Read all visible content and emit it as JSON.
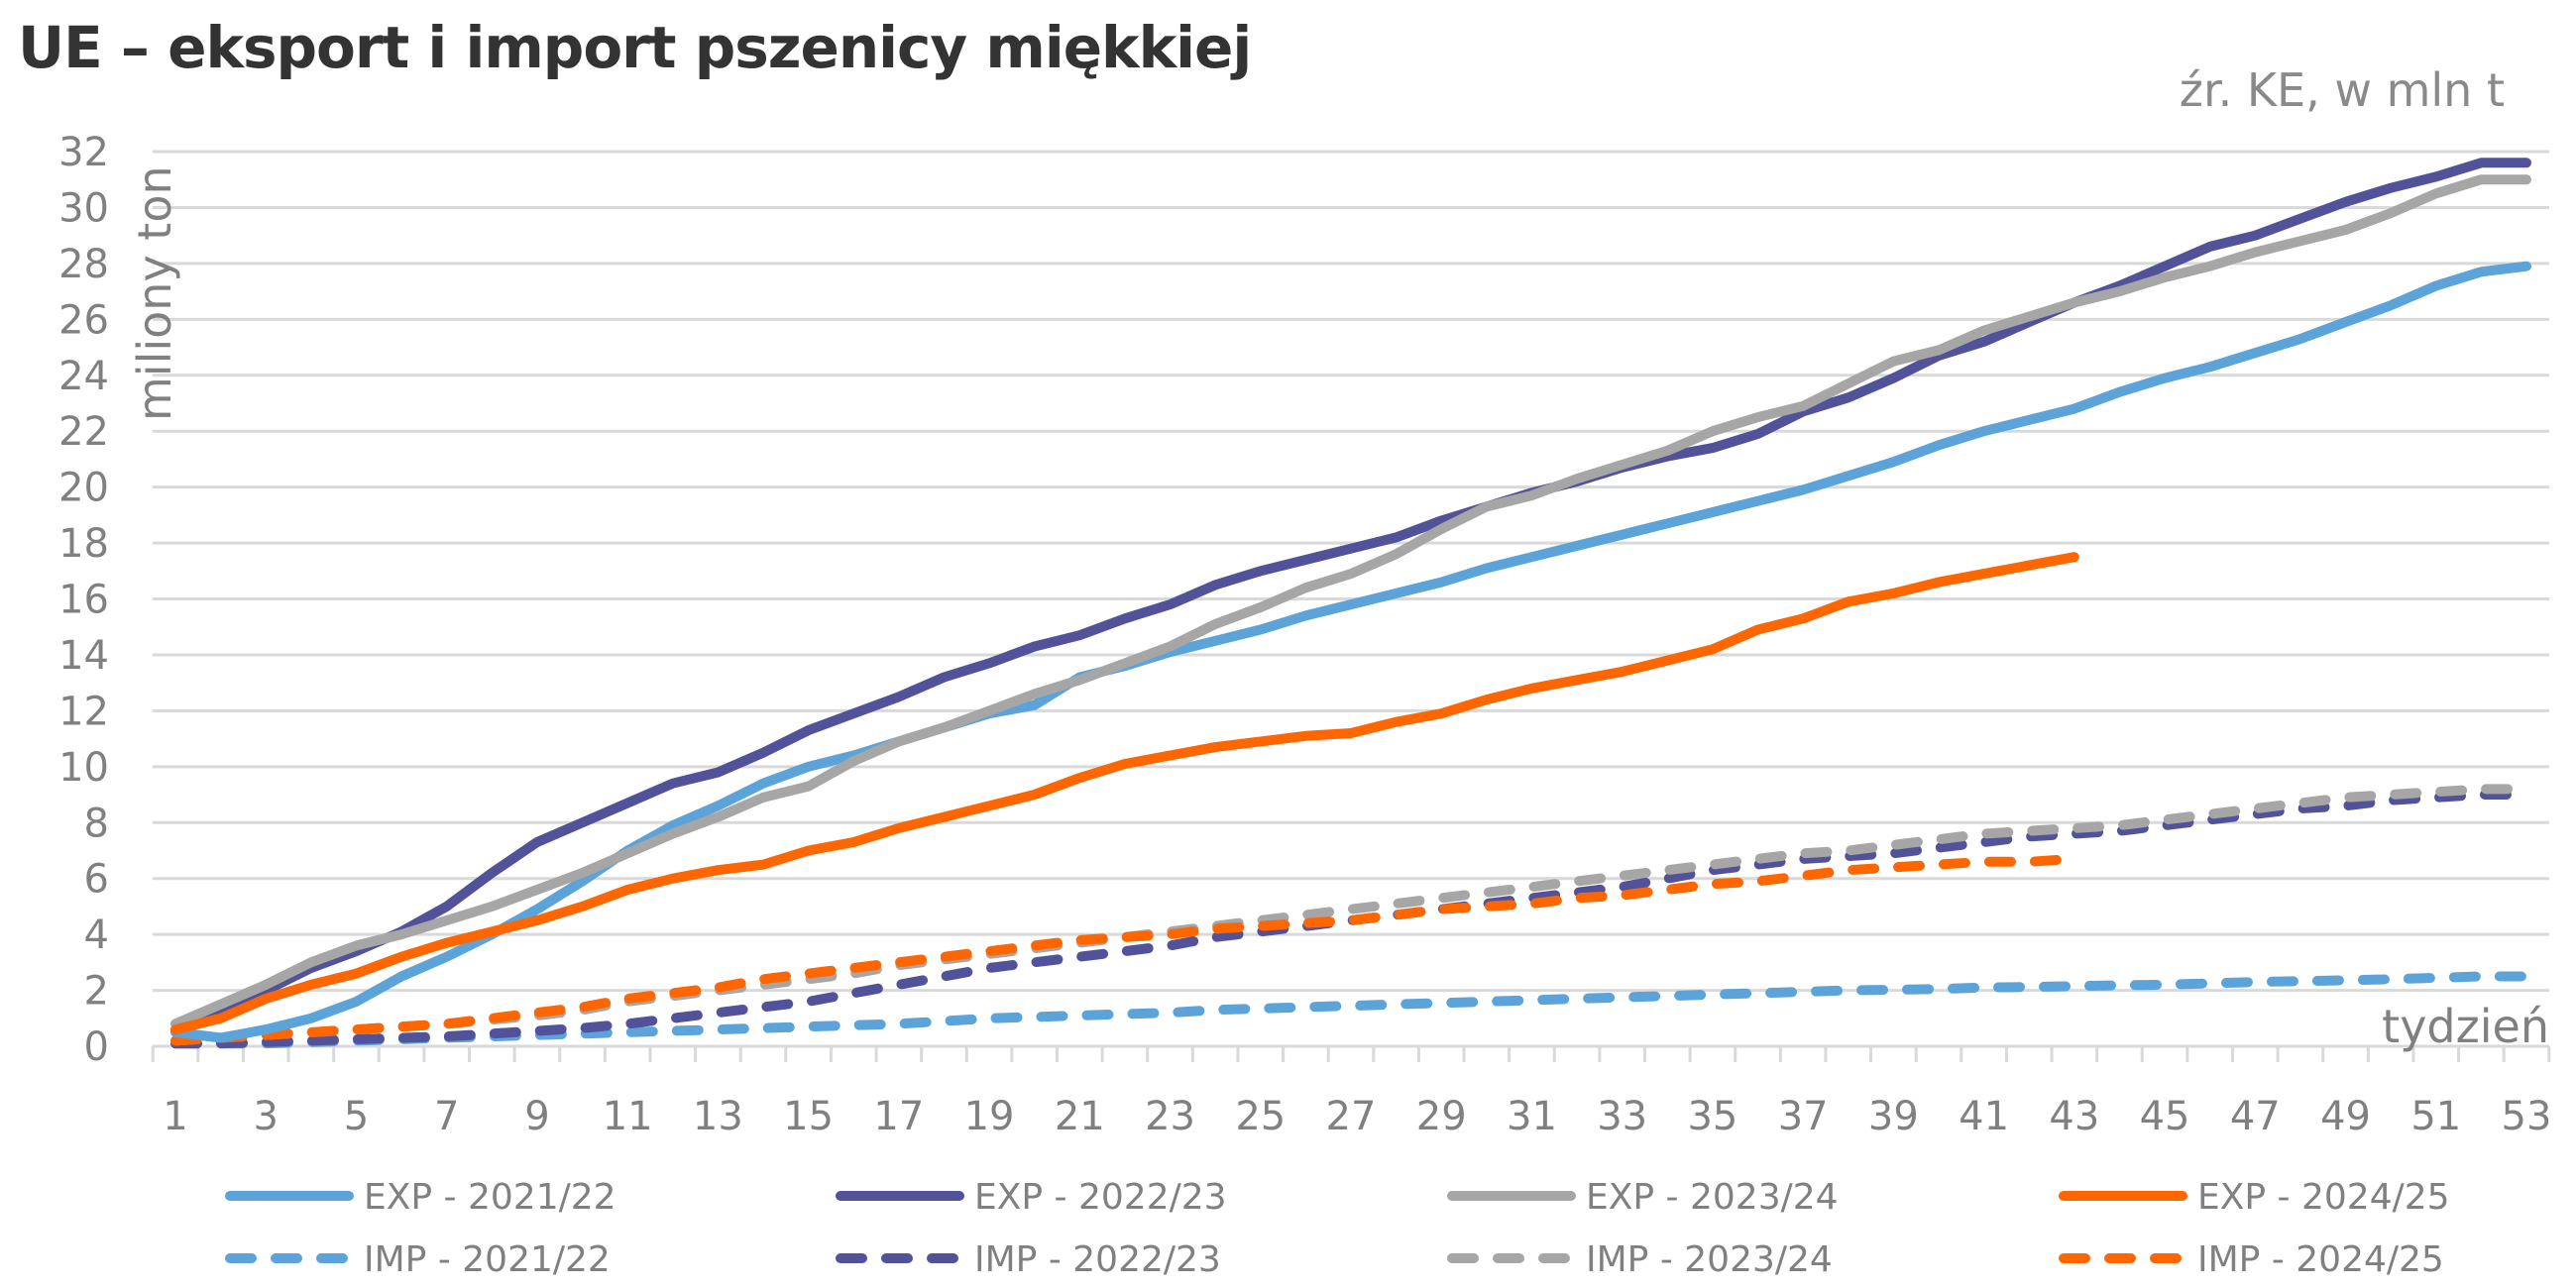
{
  "title": "UE – eksport i import pszenicy miękkiej",
  "source_note": "źr. KE, w mln t",
  "chart_data": {
    "type": "line",
    "title": "UE – eksport i import pszenicy miękkiej",
    "subtitle": "źr. KE, w mln t",
    "xlabel": "tydzień",
    "ylabel": "miliony ton",
    "ylim": [
      0,
      32
    ],
    "xlim": [
      1,
      53
    ],
    "yticks": [
      "0",
      "2",
      "4",
      "6",
      "8",
      "10",
      "12",
      "14",
      "16",
      "18",
      "20",
      "22",
      "24",
      "26",
      "28",
      "30",
      "32"
    ],
    "xticks": [
      "1",
      "3",
      "5",
      "7",
      "9",
      "11",
      "13",
      "15",
      "17",
      "19",
      "21",
      "23",
      "25",
      "27",
      "29",
      "31",
      "33",
      "35",
      "37",
      "39",
      "41",
      "43",
      "45",
      "47",
      "49",
      "51",
      "53"
    ],
    "grid": true,
    "legend_position": "bottom",
    "series": [
      {
        "name": "EXP - 2021/22",
        "color": "#5ba3d9",
        "dashed": false,
        "values": [
          0.5,
          0.3,
          0.6,
          1.0,
          1.6,
          2.5,
          3.2,
          4.0,
          4.9,
          5.9,
          7.0,
          7.9,
          8.6,
          9.4,
          10.0,
          10.4,
          10.9,
          11.4,
          11.9,
          12.2,
          13.2,
          13.6,
          14.1,
          14.5,
          14.9,
          15.4,
          15.8,
          16.2,
          16.6,
          17.1,
          17.5,
          17.9,
          18.3,
          18.7,
          19.1,
          19.5,
          19.9,
          20.4,
          20.9,
          21.5,
          22.0,
          22.4,
          22.8,
          23.4,
          23.9,
          24.3,
          24.8,
          25.3,
          25.9,
          26.5,
          27.2,
          27.7,
          27.9
        ]
      },
      {
        "name": "EXP - 2022/23",
        "color": "#52529b",
        "dashed": false,
        "values": [
          0.6,
          1.3,
          2.0,
          2.8,
          3.4,
          4.1,
          5.0,
          6.2,
          7.3,
          8.0,
          8.7,
          9.4,
          9.8,
          10.5,
          11.3,
          11.9,
          12.5,
          13.2,
          13.7,
          14.3,
          14.7,
          15.3,
          15.8,
          16.5,
          17.0,
          17.4,
          17.8,
          18.2,
          18.8,
          19.3,
          19.8,
          20.2,
          20.7,
          21.1,
          21.4,
          21.9,
          22.7,
          23.2,
          23.9,
          24.7,
          25.2,
          25.9,
          26.6,
          27.2,
          27.9,
          28.6,
          29.0,
          29.6,
          30.2,
          30.7,
          31.1,
          31.6,
          31.6
        ]
      },
      {
        "name": "EXP - 2023/24",
        "color": "#a6a6a6",
        "dashed": false,
        "values": [
          0.8,
          1.5,
          2.2,
          3.0,
          3.6,
          4.0,
          4.5,
          5.0,
          5.6,
          6.2,
          6.9,
          7.6,
          8.2,
          8.9,
          9.3,
          10.2,
          10.9,
          11.4,
          12.0,
          12.6,
          13.1,
          13.7,
          14.3,
          15.1,
          15.7,
          16.4,
          16.9,
          17.6,
          18.5,
          19.3,
          19.7,
          20.3,
          20.8,
          21.3,
          22.0,
          22.5,
          22.9,
          23.7,
          24.5,
          24.9,
          25.6,
          26.1,
          26.6,
          27.0,
          27.5,
          27.9,
          28.4,
          28.8,
          29.2,
          29.8,
          30.5,
          31.0,
          31.0
        ]
      },
      {
        "name": "EXP - 2024/25",
        "color": "#ff6600",
        "dashed": false,
        "values": [
          0.6,
          1.0,
          1.7,
          2.2,
          2.6,
          3.2,
          3.7,
          4.1,
          4.5,
          5.0,
          5.6,
          6.0,
          6.3,
          6.5,
          7.0,
          7.3,
          7.8,
          8.2,
          8.6,
          9.0,
          9.6,
          10.1,
          10.4,
          10.7,
          10.9,
          11.1,
          11.2,
          11.6,
          11.9,
          12.4,
          12.8,
          13.1,
          13.4,
          13.8,
          14.2,
          14.9,
          15.3,
          15.9,
          16.2,
          16.6,
          16.9,
          17.2,
          17.5
        ]
      },
      {
        "name": "IMP - 2021/22",
        "color": "#5ba3d9",
        "dashed": true,
        "values": [
          0.1,
          0.1,
          0.1,
          0.15,
          0.2,
          0.25,
          0.3,
          0.35,
          0.4,
          0.45,
          0.5,
          0.55,
          0.6,
          0.65,
          0.7,
          0.75,
          0.8,
          0.9,
          1.0,
          1.05,
          1.1,
          1.15,
          1.2,
          1.3,
          1.35,
          1.4,
          1.45,
          1.5,
          1.55,
          1.6,
          1.65,
          1.7,
          1.75,
          1.8,
          1.85,
          1.9,
          1.95,
          2.0,
          2.02,
          2.05,
          2.1,
          2.12,
          2.15,
          2.18,
          2.2,
          2.25,
          2.3,
          2.33,
          2.36,
          2.4,
          2.45,
          2.5,
          2.5
        ]
      },
      {
        "name": "IMP - 2022/23",
        "color": "#52529b",
        "dashed": true,
        "values": [
          0.1,
          0.1,
          0.15,
          0.2,
          0.25,
          0.3,
          0.35,
          0.45,
          0.55,
          0.65,
          0.8,
          1.0,
          1.2,
          1.4,
          1.6,
          1.9,
          2.2,
          2.5,
          2.8,
          3.0,
          3.2,
          3.4,
          3.6,
          3.9,
          4.1,
          4.3,
          4.5,
          4.7,
          4.9,
          5.1,
          5.3,
          5.5,
          5.7,
          6.0,
          6.3,
          6.5,
          6.7,
          6.8,
          6.9,
          7.1,
          7.3,
          7.5,
          7.6,
          7.7,
          7.9,
          8.1,
          8.3,
          8.5,
          8.6,
          8.8,
          8.9,
          9.0,
          9.0
        ]
      },
      {
        "name": "IMP - 2023/24",
        "color": "#a6a6a6",
        "dashed": true,
        "values": [
          0.2,
          0.3,
          0.4,
          0.5,
          0.6,
          0.7,
          0.8,
          0.95,
          1.1,
          1.3,
          1.6,
          1.8,
          2.0,
          2.2,
          2.4,
          2.6,
          2.9,
          3.1,
          3.3,
          3.5,
          3.7,
          3.9,
          4.1,
          4.3,
          4.5,
          4.7,
          4.9,
          5.1,
          5.3,
          5.5,
          5.7,
          5.9,
          6.1,
          6.3,
          6.5,
          6.7,
          6.9,
          7.0,
          7.2,
          7.4,
          7.6,
          7.7,
          7.8,
          7.9,
          8.1,
          8.3,
          8.5,
          8.7,
          8.9,
          9.0,
          9.1,
          9.2,
          9.2
        ]
      },
      {
        "name": "IMP - 2024/25",
        "color": "#ff6600",
        "dashed": true,
        "values": [
          0.2,
          0.3,
          0.4,
          0.5,
          0.6,
          0.7,
          0.8,
          1.0,
          1.2,
          1.4,
          1.7,
          1.9,
          2.1,
          2.4,
          2.6,
          2.8,
          3.0,
          3.2,
          3.4,
          3.6,
          3.8,
          3.9,
          4.0,
          4.2,
          4.3,
          4.4,
          4.5,
          4.7,
          4.9,
          5.0,
          5.1,
          5.3,
          5.4,
          5.6,
          5.8,
          5.9,
          6.1,
          6.3,
          6.4,
          6.5,
          6.6,
          6.6,
          6.7
        ]
      }
    ]
  }
}
